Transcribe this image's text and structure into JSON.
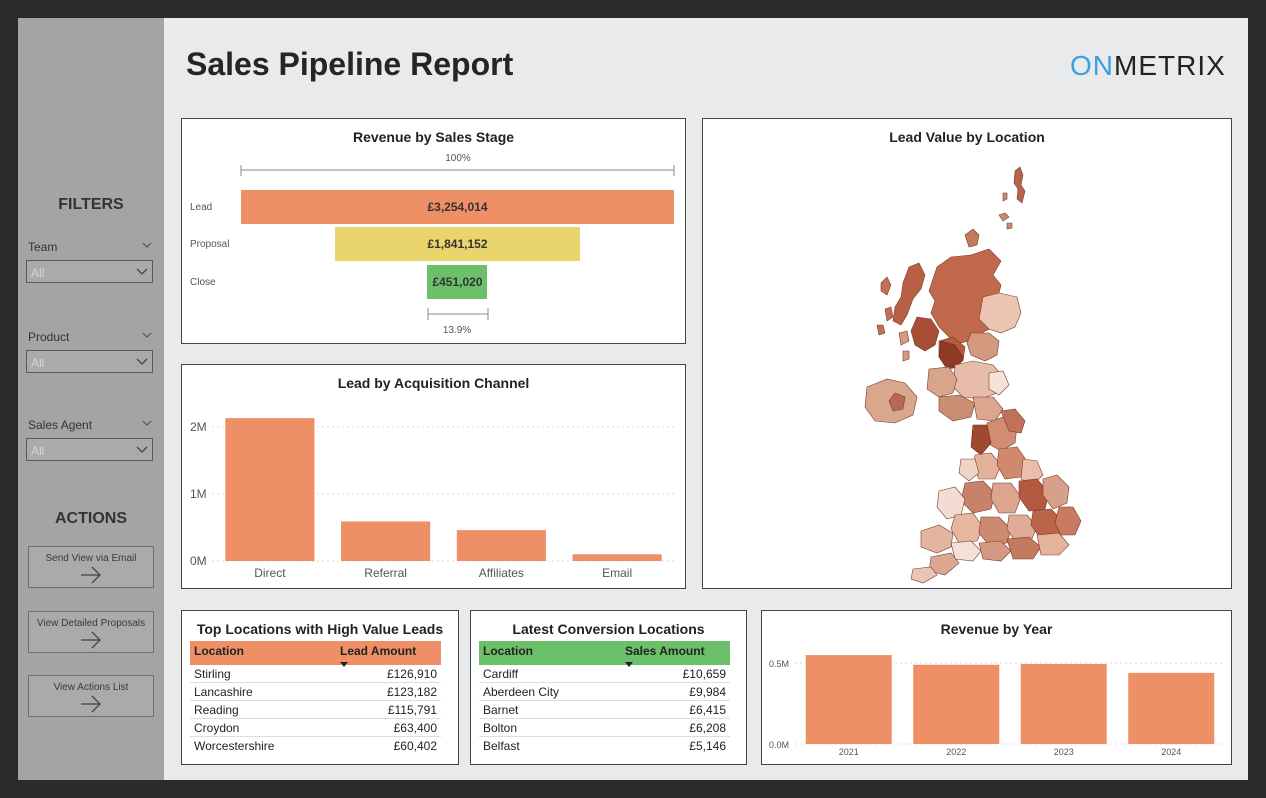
{
  "sidebar": {
    "filters_heading": "FILTERS",
    "filters": [
      {
        "label": "Team",
        "value": "All"
      },
      {
        "label": "Product",
        "value": "All"
      },
      {
        "label": "Sales Agent",
        "value": "All"
      }
    ],
    "actions_heading": "ACTIONS",
    "actions": [
      {
        "label": "Send View via Email"
      },
      {
        "label": "View Detailed Proposals"
      },
      {
        "label": "View Actions List"
      }
    ]
  },
  "header": {
    "title": "Sales Pipeline Report",
    "logo_on": "ON",
    "logo_rest": "METRIX"
  },
  "funnel": {
    "title": "Revenue by Sales Stage",
    "top_pct": "100%",
    "bottom_pct": "13.9%",
    "stages": [
      {
        "label": "Lead",
        "value_text": "£3,254,014"
      },
      {
        "label": "Proposal",
        "value_text": "£1,841,152"
      },
      {
        "label": "Close",
        "value_text": "£451,020"
      }
    ]
  },
  "map": {
    "title": "Lead Value by Location"
  },
  "top_locations": {
    "title": "Top Locations with High Value Leads",
    "col1": "Location",
    "col2": "Lead Amount",
    "rows": [
      {
        "location": "Stirling",
        "amount": "£126,910"
      },
      {
        "location": "Lancashire",
        "amount": "£123,182"
      },
      {
        "location": "Reading",
        "amount": "£115,791"
      },
      {
        "location": "Croydon",
        "amount": "£63,400"
      },
      {
        "location": "Worcestershire",
        "amount": "£60,402"
      }
    ]
  },
  "conversions": {
    "title": "Latest Conversion Locations",
    "col1": "Location",
    "col2": "Sales Amount",
    "rows": [
      {
        "location": "Cardiff",
        "amount": "£10,659"
      },
      {
        "location": "Aberdeen City",
        "amount": "£9,984"
      },
      {
        "location": "Barnet",
        "amount": "£6,415"
      },
      {
        "location": "Bolton",
        "amount": "£6,208"
      },
      {
        "location": "Belfast",
        "amount": "£5,146"
      }
    ]
  },
  "colors": {
    "accent_orange": "#ee8f65",
    "proposal_yellow": "#e9d56b",
    "close_green": "#6cc069",
    "logo_blue": "#3aa1de"
  },
  "chart_data": [
    {
      "type": "funnel",
      "title": "Revenue by Sales Stage",
      "categories": [
        "Lead",
        "Proposal",
        "Close"
      ],
      "values": [
        3254014,
        1841152,
        451020
      ]
    },
    {
      "type": "bar",
      "title": "Lead by Acquisition Channel",
      "categories": [
        "Direct",
        "Referral",
        "Affiliates",
        "Email"
      ],
      "values": [
        2130000,
        590000,
        460000,
        100000
      ],
      "yticks": [
        "0M",
        "1M",
        "2M"
      ],
      "ylim": [
        0,
        2400000
      ],
      "grid": true
    },
    {
      "type": "bar",
      "title": "Revenue by Year",
      "categories": [
        "2021",
        "2022",
        "2023",
        "2024"
      ],
      "values": [
        550000,
        490000,
        495000,
        440000
      ],
      "yticks": [
        "0.0M",
        "0.5M"
      ],
      "ylim": [
        0,
        600000
      ],
      "grid": true
    }
  ]
}
